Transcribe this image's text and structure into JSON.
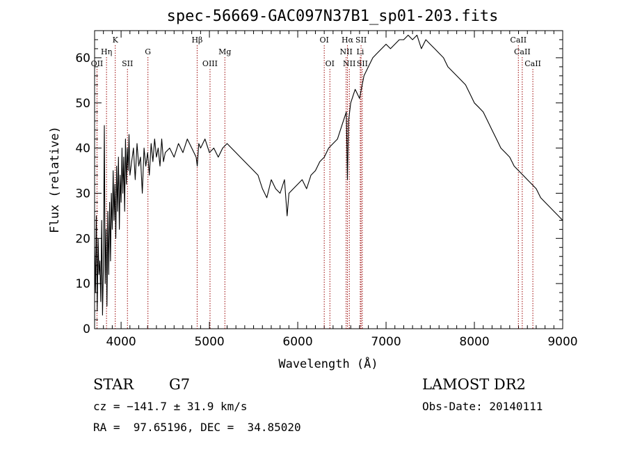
{
  "chart_data": {
    "type": "line",
    "title": "spec-56669-GAC097N37B1_sp01-203.fits",
    "xlabel": "Wavelength (Å)",
    "ylabel": "Flux (relative)",
    "xlim": [
      3700,
      9000
    ],
    "ylim": [
      0,
      66
    ],
    "xticks": [
      4000,
      5000,
      6000,
      7000,
      8000,
      9000
    ],
    "yticks": [
      0,
      10,
      20,
      30,
      40,
      50,
      60
    ],
    "line_color": "#000000",
    "marker_color": "#990000",
    "spectrum": {
      "x": [
        3700,
        3710,
        3720,
        3730,
        3740,
        3750,
        3760,
        3770,
        3780,
        3790,
        3800,
        3810,
        3820,
        3830,
        3840,
        3850,
        3860,
        3870,
        3880,
        3890,
        3900,
        3910,
        3920,
        3930,
        3940,
        3950,
        3960,
        3970,
        3980,
        3990,
        4000,
        4010,
        4020,
        4030,
        4040,
        4050,
        4060,
        4070,
        4080,
        4090,
        4100,
        4120,
        4140,
        4160,
        4180,
        4200,
        4220,
        4240,
        4260,
        4280,
        4300,
        4320,
        4340,
        4360,
        4380,
        4400,
        4420,
        4440,
        4460,
        4480,
        4500,
        4550,
        4600,
        4650,
        4700,
        4750,
        4800,
        4850,
        4862,
        4880,
        4900,
        4950,
        5000,
        5050,
        5100,
        5150,
        5200,
        5250,
        5300,
        5350,
        5400,
        5450,
        5500,
        5550,
        5600,
        5650,
        5700,
        5750,
        5800,
        5850,
        5880,
        5900,
        5950,
        6000,
        6050,
        6100,
        6150,
        6200,
        6250,
        6300,
        6350,
        6400,
        6450,
        6500,
        6550,
        6563,
        6575,
        6600,
        6650,
        6700,
        6750,
        6800,
        6850,
        6900,
        6950,
        7000,
        7050,
        7100,
        7150,
        7200,
        7250,
        7300,
        7350,
        7400,
        7450,
        7500,
        7550,
        7600,
        7650,
        7700,
        7750,
        7800,
        7850,
        7900,
        7950,
        8000,
        8050,
        8100,
        8150,
        8200,
        8250,
        8300,
        8350,
        8400,
        8450,
        8500,
        8550,
        8600,
        8650,
        8700,
        8750,
        8800,
        8850,
        8900,
        8950,
        9000
      ],
      "y": [
        18,
        8,
        25,
        4,
        20,
        12,
        15,
        6,
        24,
        3,
        14,
        45,
        10,
        22,
        5,
        26,
        12,
        28,
        15,
        30,
        22,
        35,
        24,
        32,
        20,
        36,
        26,
        38,
        22,
        34,
        28,
        40,
        30,
        38,
        26,
        42,
        32,
        40,
        35,
        43,
        34,
        37,
        40,
        33,
        41,
        36,
        38,
        30,
        40,
        36,
        39,
        34,
        41,
        37,
        42,
        38,
        40,
        36,
        42,
        37,
        39,
        40,
        38,
        41,
        39,
        42,
        40,
        38,
        36,
        41,
        40,
        42,
        39,
        40,
        38,
        40,
        41,
        40,
        39,
        38,
        37,
        36,
        35,
        34,
        31,
        29,
        33,
        31,
        30,
        33,
        25,
        30,
        31,
        32,
        33,
        31,
        34,
        35,
        37,
        38,
        40,
        41,
        42,
        45,
        48,
        33,
        46,
        50,
        53,
        51,
        56,
        58,
        60,
        61,
        62,
        63,
        62,
        63,
        64,
        64,
        65,
        64,
        65,
        62,
        64,
        63,
        62,
        61,
        60,
        58,
        57,
        56,
        55,
        54,
        52,
        50,
        49,
        48,
        46,
        44,
        42,
        40,
        39,
        38,
        36,
        35,
        34,
        33,
        32,
        31,
        29,
        28,
        27,
        26,
        25,
        24
      ]
    },
    "line_markers": [
      {
        "label": "Hη",
        "x": 3835,
        "row": 2
      },
      {
        "label": "K",
        "x": 3934,
        "row": 1
      },
      {
        "label": "OII",
        "x": 3727,
        "row": 3
      },
      {
        "label": "SII",
        "x": 4072,
        "row": 3
      },
      {
        "label": "G",
        "x": 4304,
        "row": 2
      },
      {
        "label": "Hβ",
        "x": 4861,
        "row": 1
      },
      {
        "label": "OIII",
        "x": 5007,
        "row": 3
      },
      {
        "label": "Mg",
        "x": 5175,
        "row": 2
      },
      {
        "label": "OI",
        "x": 6300,
        "row": 1
      },
      {
        "label": "OI",
        "x": 6364,
        "row": 3
      },
      {
        "label": "Hα",
        "x": 6563,
        "row": 1
      },
      {
        "label": "NII",
        "x": 6548,
        "row": 2
      },
      {
        "label": "NII",
        "x": 6584,
        "row": 3
      },
      {
        "label": "SII",
        "x": 6717,
        "row": 1
      },
      {
        "label": "Li",
        "x": 6708,
        "row": 2
      },
      {
        "label": "SII",
        "x": 6731,
        "row": 3
      },
      {
        "label": "CaII",
        "x": 8498,
        "row": 1
      },
      {
        "label": "CaII",
        "x": 8542,
        "row": 2
      },
      {
        "label": "CaII",
        "x": 8662,
        "row": 3
      }
    ]
  },
  "info": {
    "class": "STAR",
    "subclass": "G7",
    "survey": "LAMOST DR2",
    "redshift": "cz = −141.7 ± 31.9 km/s",
    "obsdate": "Obs-Date: 20140111",
    "coords": "RA =  97.65196, DEC =  34.85020"
  }
}
